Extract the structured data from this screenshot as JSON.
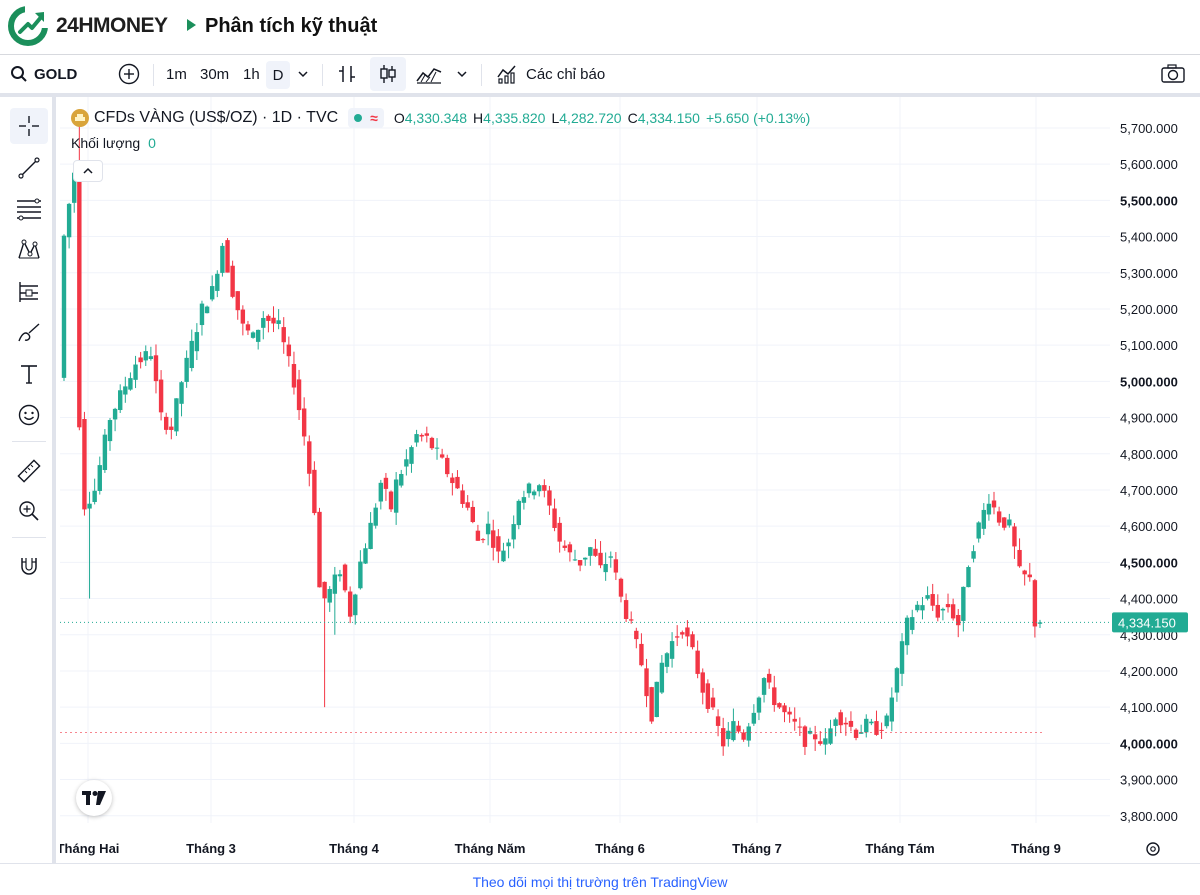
{
  "header": {
    "brand": "24HMONEY",
    "page_title": "Phân tích kỹ thuật",
    "brand_color": "#1b8f5b"
  },
  "toolbar": {
    "symbol": "GOLD",
    "intervals": [
      "1m",
      "30m",
      "1h",
      "D"
    ],
    "indicators_label": "Các chỉ báo"
  },
  "legend": {
    "title": "CFDs VÀNG (US$/OZ) · 1D · TVC",
    "open_key": "O",
    "open": "4,330.348",
    "high_key": "H",
    "high": "4,335.820",
    "low_key": "L",
    "low": "4,282.720",
    "close_key": "C",
    "close": "4,334.150",
    "change": "+5.650 (+0.13%)",
    "volume_label": "Khối lượng",
    "volume_value": "0"
  },
  "footer": {
    "link_text": "Theo dõi mọi thị trường trên TradingView"
  },
  "chart_data": {
    "type": "candlestick",
    "y_axis_labels": [
      "5,700.000",
      "5,600.000",
      "5,500.000",
      "5,400.000",
      "5,300.000",
      "5,200.000",
      "5,100.000",
      "5,000.000",
      "4,900.000",
      "4,800.000",
      "4,700.000",
      "4,600.000",
      "4,500.000",
      "4,400.000",
      "4,300.000",
      "4,200.000",
      "4,100.000",
      "4,000.000",
      "3,900.000",
      "3,800.000"
    ],
    "ylim": [
      3780,
      5780
    ],
    "x_axis_labels": [
      "Tháng Hai",
      "Tháng 3",
      "Tháng 4",
      "Tháng Năm",
      "Tháng 6",
      "Tháng 7",
      "Tháng Tám",
      "Tháng 9"
    ],
    "last_price_label": "4,334.150",
    "last_price": 4334.15,
    "reference_level": 4030,
    "up_color": "#22ab94",
    "down_color": "#f23645",
    "keypoints": [
      [
        0,
        5010
      ],
      [
        1,
        5400
      ],
      [
        3,
        5580
      ],
      [
        4,
        4890
      ],
      [
        5,
        4660
      ],
      [
        7,
        4700
      ],
      [
        10,
        4900
      ],
      [
        12,
        4960
      ],
      [
        15,
        5050
      ],
      [
        18,
        5080
      ],
      [
        20,
        4900
      ],
      [
        22,
        4870
      ],
      [
        24,
        5000
      ],
      [
        26,
        5100
      ],
      [
        28,
        5200
      ],
      [
        30,
        5250
      ],
      [
        32,
        5380
      ],
      [
        34,
        5250
      ],
      [
        36,
        5150
      ],
      [
        38,
        5120
      ],
      [
        40,
        5180
      ],
      [
        43,
        5150
      ],
      [
        46,
        5000
      ],
      [
        48,
        4850
      ],
      [
        50,
        4650
      ],
      [
        51,
        4430
      ],
      [
        52,
        4400
      ],
      [
        53,
        4420
      ],
      [
        55,
        4480
      ],
      [
        57,
        4360
      ],
      [
        59,
        4500
      ],
      [
        61,
        4600
      ],
      [
        63,
        4720
      ],
      [
        65,
        4650
      ],
      [
        66,
        4720
      ],
      [
        68,
        4780
      ],
      [
        70,
        4850
      ],
      [
        72,
        4840
      ],
      [
        74,
        4800
      ],
      [
        76,
        4750
      ],
      [
        78,
        4700
      ],
      [
        80,
        4650
      ],
      [
        82,
        4560
      ],
      [
        84,
        4600
      ],
      [
        86,
        4520
      ],
      [
        88,
        4560
      ],
      [
        90,
        4680
      ],
      [
        92,
        4700
      ],
      [
        94,
        4720
      ],
      [
        96,
        4650
      ],
      [
        98,
        4560
      ],
      [
        100,
        4520
      ],
      [
        102,
        4500
      ],
      [
        104,
        4540
      ],
      [
        106,
        4480
      ],
      [
        108,
        4520
      ],
      [
        110,
        4400
      ],
      [
        112,
        4320
      ],
      [
        114,
        4220
      ],
      [
        116,
        4080
      ],
      [
        118,
        4220
      ],
      [
        120,
        4280
      ],
      [
        122,
        4320
      ],
      [
        124,
        4250
      ],
      [
        126,
        4150
      ],
      [
        128,
        4080
      ],
      [
        130,
        4000
      ],
      [
        132,
        4050
      ],
      [
        134,
        4020
      ],
      [
        136,
        4100
      ],
      [
        138,
        4180
      ],
      [
        140,
        4120
      ],
      [
        142,
        4080
      ],
      [
        144,
        4050
      ],
      [
        146,
        4010
      ],
      [
        148,
        4020
      ],
      [
        150,
        4000
      ],
      [
        152,
        4080
      ],
      [
        154,
        4060
      ],
      [
        156,
        4030
      ],
      [
        158,
        4050
      ],
      [
        160,
        4040
      ],
      [
        162,
        4060
      ],
      [
        164,
        4200
      ],
      [
        166,
        4330
      ],
      [
        168,
        4380
      ],
      [
        170,
        4400
      ],
      [
        172,
        4360
      ],
      [
        174,
        4380
      ],
      [
        176,
        4330
      ],
      [
        178,
        4500
      ],
      [
        180,
        4600
      ],
      [
        182,
        4680
      ],
      [
        184,
        4620
      ],
      [
        186,
        4600
      ],
      [
        188,
        4470
      ],
      [
        190,
        4450
      ],
      [
        191,
        4334
      ]
    ]
  }
}
